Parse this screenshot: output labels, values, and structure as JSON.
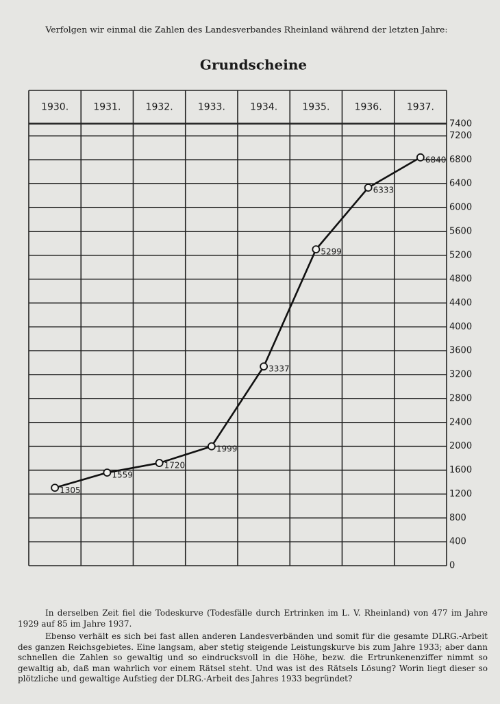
{
  "intro": "Verfolgen wir einmal die Zahlen des Landesverbandes Rheinland während der letzten Jahre:",
  "chart_data": {
    "type": "line",
    "title": "Grundscheine",
    "categories": [
      "1930.",
      "1931.",
      "1932.",
      "1933.",
      "1934.",
      "1935.",
      "1936.",
      "1937."
    ],
    "values": [
      1305,
      1559,
      1720,
      1999,
      3337,
      5299,
      6333,
      6840
    ],
    "color": "#111111",
    "ylim": [
      0,
      7400
    ],
    "yticks": [
      0,
      400,
      800,
      1200,
      1600,
      2000,
      2400,
      2800,
      3200,
      3600,
      4000,
      4400,
      4800,
      5200,
      5600,
      6000,
      6400,
      6800,
      7200,
      7400
    ],
    "grid": true
  },
  "paragraphs": [
    "In derselben Zeit fiel die Todeskurve (Todesfälle durch Ertrinken im L. V. Rheinland) von 477 im Jahre 1929 auf 85 im Jahre 1937.",
    "Ebenso verhält es sich bei fast allen anderen Landesverbänden und somit für die gesamte DLRG.-Arbeit des ganzen Reichsgebietes. Eine langsam, aber stetig steigende Leistungskurve bis zum Jahre 1933; aber dann schnellen die Zahlen so gewaltig und so eindrucksvoll in die Höhe, bezw. die Ertrunkenenziffer nimmt so gewaltig ab, daß man wahrlich vor einem Rätsel steht. Und was ist des Rätsels Lösung? Worin liegt dieser so plötzliche und gewaltige Aufstieg der DLRG.-Arbeit des Jahres 1933 begründet?"
  ]
}
